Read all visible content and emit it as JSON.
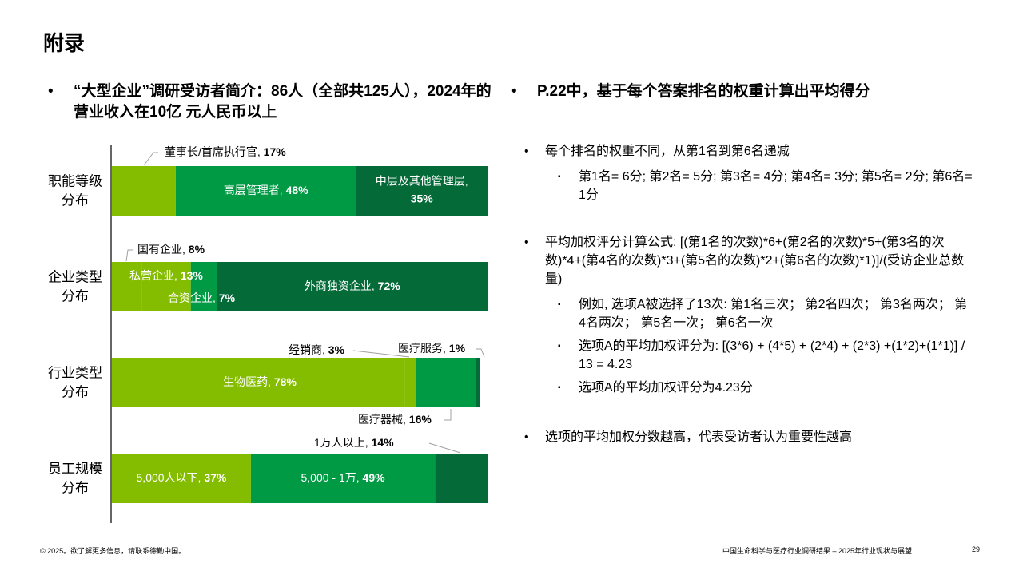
{
  "page": {
    "title": "附录",
    "left_heading": "“大型企业”调研受访者简介：86人（全部共125人），2024年的营业收入在10亿 元人民币以上",
    "right_heading": "P.22中，基于每个答案排名的权重计算出平均得分",
    "bullet_symbol": "•",
    "sub_bullet_symbol": "▪"
  },
  "right_bullets": [
    {
      "text": "每个排名的权重不同，从第1名到第6名递减",
      "subs": [
        "第1名= 6分; 第2名= 5分; 第3名= 4分; 第4名= 3分; 第5名= 2分; 第6名= 1分"
      ]
    },
    {
      "text": "平均加权评分计算公式: [(第1名的次数)*6+(第2名的次数)*5+(第3名的次数)*4+(第4名的次数)*3+(第5名的次数)*2+(第6名的次数)*1)]/(受访企业总数量)",
      "subs": [
        "例如, 选项A被选择了13次: 第1名三次； 第2名四次； 第3名两次； 第4名两次； 第5名一次； 第6名一次",
        "选项A的平均加权评分为: [(3*6) + (4*5) + (2*4) + (2*3) +(1*2)+(1*1)] / 13 = 4.23",
        "选项A的平均加权评分为4.23分"
      ]
    },
    {
      "text": "选项的平均加权分数越高，代表受访者认为重要性越高",
      "subs": []
    }
  ],
  "footer": {
    "left": "© 2025。欲了解更多信息，请联系德勤中国。",
    "right": "中国生命科学与医疗行业调研结果 – 2025年行业现状与展望",
    "page_number": "29"
  },
  "chart_data": {
    "type": "bar",
    "orientation": "horizontal",
    "stacked": true,
    "unit": "%",
    "colors": {
      "light": "#84bd00",
      "mid": "#009a44",
      "dark": "#046a38",
      "axis": "#000000",
      "leader": "#a0a0a0"
    },
    "rows": [
      {
        "category": "职能等级分布",
        "category_lines": [
          "职能等级",
          "分布"
        ],
        "segments": [
          {
            "name": "董事长/首席执行官",
            "value": 17,
            "color": "light"
          },
          {
            "name": "高层管理者",
            "value": 48,
            "color": "mid"
          },
          {
            "name": "中层及其他管理层",
            "value": 35,
            "color": "dark"
          }
        ]
      },
      {
        "category": "企业类型分布",
        "category_lines": [
          "企业类型",
          "分布"
        ],
        "segments": [
          {
            "name": "国有企业",
            "value": 8,
            "color": "light"
          },
          {
            "name": "私营企业",
            "value": 13,
            "color": "light"
          },
          {
            "name": "合资企业",
            "value": 7,
            "color": "mid"
          },
          {
            "name": "外商独资企业",
            "value": 72,
            "color": "dark"
          }
        ]
      },
      {
        "category": "行业类型分布",
        "category_lines": [
          "行业类型",
          "分布"
        ],
        "segments": [
          {
            "name": "生物医药",
            "value": 78,
            "color": "light"
          },
          {
            "name": "经销商",
            "value": 3,
            "color": "light"
          },
          {
            "name": "医疗器械",
            "value": 16,
            "color": "mid"
          },
          {
            "name": "医疗服务",
            "value": 1,
            "color": "dark"
          }
        ]
      },
      {
        "category": "员工规模分布",
        "category_lines": [
          "员工规模",
          "分布"
        ],
        "segments": [
          {
            "name": "5,000人以下",
            "value": 37,
            "color": "light"
          },
          {
            "name": "5,000 - 1万",
            "value": 49,
            "color": "mid"
          },
          {
            "name": "1万人以上",
            "value": 14,
            "color": "dark"
          }
        ]
      }
    ]
  }
}
